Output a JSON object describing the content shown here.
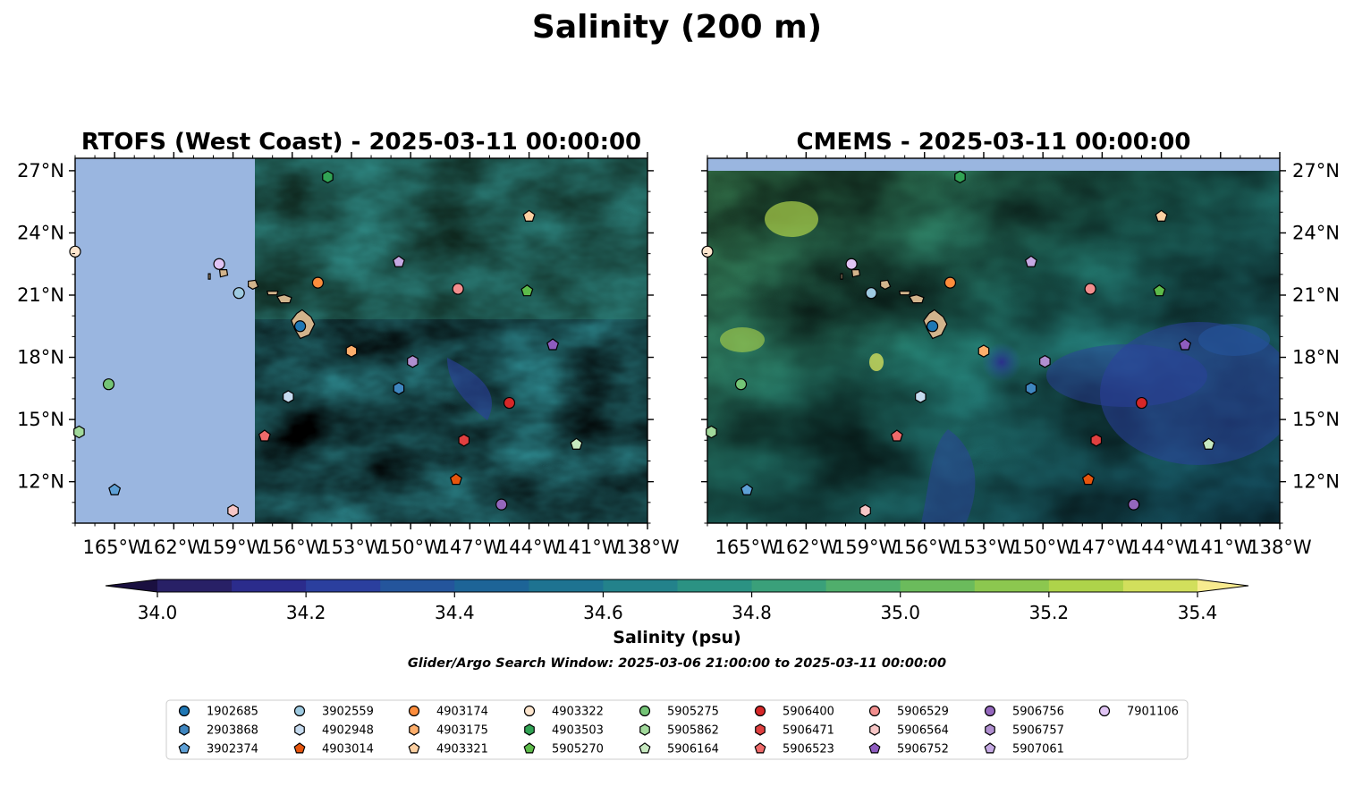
{
  "title": "Salinity (200 m)",
  "panels": [
    {
      "title": "RTOFS (West Coast) - 2025-03-11 00:00:00",
      "y_tick_side": "left"
    },
    {
      "title": "CMEMS - 2025-03-11 00:00:00",
      "y_tick_side": "right"
    }
  ],
  "chart_data": {
    "type": "map-contour",
    "lon_range": [
      -167,
      -138
    ],
    "lat_range": [
      10,
      27.6
    ],
    "x_ticks": [
      "165°W",
      "162°W",
      "159°W",
      "156°W",
      "153°W",
      "150°W",
      "147°W",
      "144°W",
      "141°W",
      "138°W"
    ],
    "x_tick_values": [
      -165,
      -162,
      -159,
      -156,
      -153,
      -150,
      -147,
      -144,
      -141,
      -138
    ],
    "y_ticks": [
      "27°N",
      "24°N",
      "21°N",
      "18°N",
      "15°N",
      "12°N"
    ],
    "y_tick_values": [
      27,
      24,
      21,
      18,
      15,
      12
    ],
    "colorbar": {
      "label": "Salinity (psu)",
      "min": 34.0,
      "max": 35.4,
      "step": 0.1,
      "tick_labels": [
        "34.0",
        "34.2",
        "34.4",
        "34.6",
        "34.8",
        "35.0",
        "35.2",
        "35.4"
      ],
      "tick_values": [
        34.0,
        34.2,
        34.4,
        34.6,
        34.8,
        35.0,
        35.2,
        35.4
      ],
      "colors": [
        "#282066",
        "#2b2c8c",
        "#2b3f9e",
        "#24559c",
        "#1d6497",
        "#1e7391",
        "#23828b",
        "#2b9283",
        "#3aa07a",
        "#50ae6c",
        "#6bbb5c",
        "#8cc74f",
        "#aed34a",
        "#d2df5c"
      ],
      "extend_low": "#1a1040",
      "extend_high": "#f8eb8f"
    },
    "note": "Glider/Argo Search Window: 2025-03-06 21:00:00 to 2025-03-11 00:00:00",
    "colors": {
      "land": "#d2b48c",
      "nodata": "#9ab6e0"
    },
    "floats": [
      {
        "id": "1902685",
        "marker": "circle",
        "color": "#1f77b4",
        "lon": -155.6,
        "lat": 19.5
      },
      {
        "id": "2903868",
        "marker": "hexagon",
        "color": "#3f86c0",
        "lon": -150.6,
        "lat": 16.5
      },
      {
        "id": "3902374",
        "marker": "pentagon",
        "color": "#5ea0d6",
        "lon": -165.0,
        "lat": 11.6
      },
      {
        "id": "3902559",
        "marker": "circle",
        "color": "#9ecae1",
        "lon": -158.7,
        "lat": 21.1
      },
      {
        "id": "4902948",
        "marker": "hexagon",
        "color": "#c6dbef",
        "lon": -156.2,
        "lat": 16.1
      },
      {
        "id": "4903014",
        "marker": "pentagon",
        "color": "#e6550d",
        "lon": -147.7,
        "lat": 12.1
      },
      {
        "id": "4903174",
        "marker": "circle",
        "color": "#fd8d3c",
        "lon": -154.7,
        "lat": 21.6
      },
      {
        "id": "4903175",
        "marker": "hexagon",
        "color": "#fdae6b",
        "lon": -153.0,
        "lat": 18.3
      },
      {
        "id": "4903321",
        "marker": "pentagon",
        "color": "#fdd0a2",
        "lon": -144.0,
        "lat": 24.8
      },
      {
        "id": "4903322",
        "marker": "circle",
        "color": "#fee6ce",
        "lon": -167.0,
        "lat": 23.1
      },
      {
        "id": "4903503",
        "marker": "hexagon",
        "color": "#31a354",
        "lon": -154.2,
        "lat": 26.7
      },
      {
        "id": "5905270",
        "marker": "pentagon",
        "color": "#5dbb4a",
        "lon": -144.1,
        "lat": 21.2
      },
      {
        "id": "5905275",
        "marker": "circle",
        "color": "#74c476",
        "lon": -165.3,
        "lat": 16.7
      },
      {
        "id": "5905862",
        "marker": "hexagon",
        "color": "#a1d99b",
        "lon": -166.8,
        "lat": 14.4
      },
      {
        "id": "5906164",
        "marker": "pentagon",
        "color": "#c7e9c0",
        "lon": -141.6,
        "lat": 13.8
      },
      {
        "id": "5906400",
        "marker": "circle",
        "color": "#d62728",
        "lon": -145.0,
        "lat": 15.8
      },
      {
        "id": "5906471",
        "marker": "hexagon",
        "color": "#e04040",
        "lon": -147.3,
        "lat": 14.0
      },
      {
        "id": "5906523",
        "marker": "pentagon",
        "color": "#ef6a6a",
        "lon": -157.4,
        "lat": 14.2
      },
      {
        "id": "5906529",
        "marker": "circle",
        "color": "#f28e8e",
        "lon": -147.6,
        "lat": 21.3
      },
      {
        "id": "5906564",
        "marker": "hexagon",
        "color": "#f7c6c6",
        "lon": -159.0,
        "lat": 10.6
      },
      {
        "id": "5906752",
        "marker": "pentagon",
        "color": "#8e5cbf",
        "lon": -142.8,
        "lat": 18.6
      },
      {
        "id": "5906756",
        "marker": "circle",
        "color": "#9467bd",
        "lon": -145.4,
        "lat": 10.9
      },
      {
        "id": "5906757",
        "marker": "hexagon",
        "color": "#b08fd0",
        "lon": -149.9,
        "lat": 17.8
      },
      {
        "id": "5907061",
        "marker": "pentagon",
        "color": "#c5a9e3",
        "lon": -150.6,
        "lat": 22.6
      },
      {
        "id": "7901106",
        "marker": "circle",
        "color": "#e0c4f4",
        "lon": -159.7,
        "lat": 22.5
      }
    ]
  }
}
